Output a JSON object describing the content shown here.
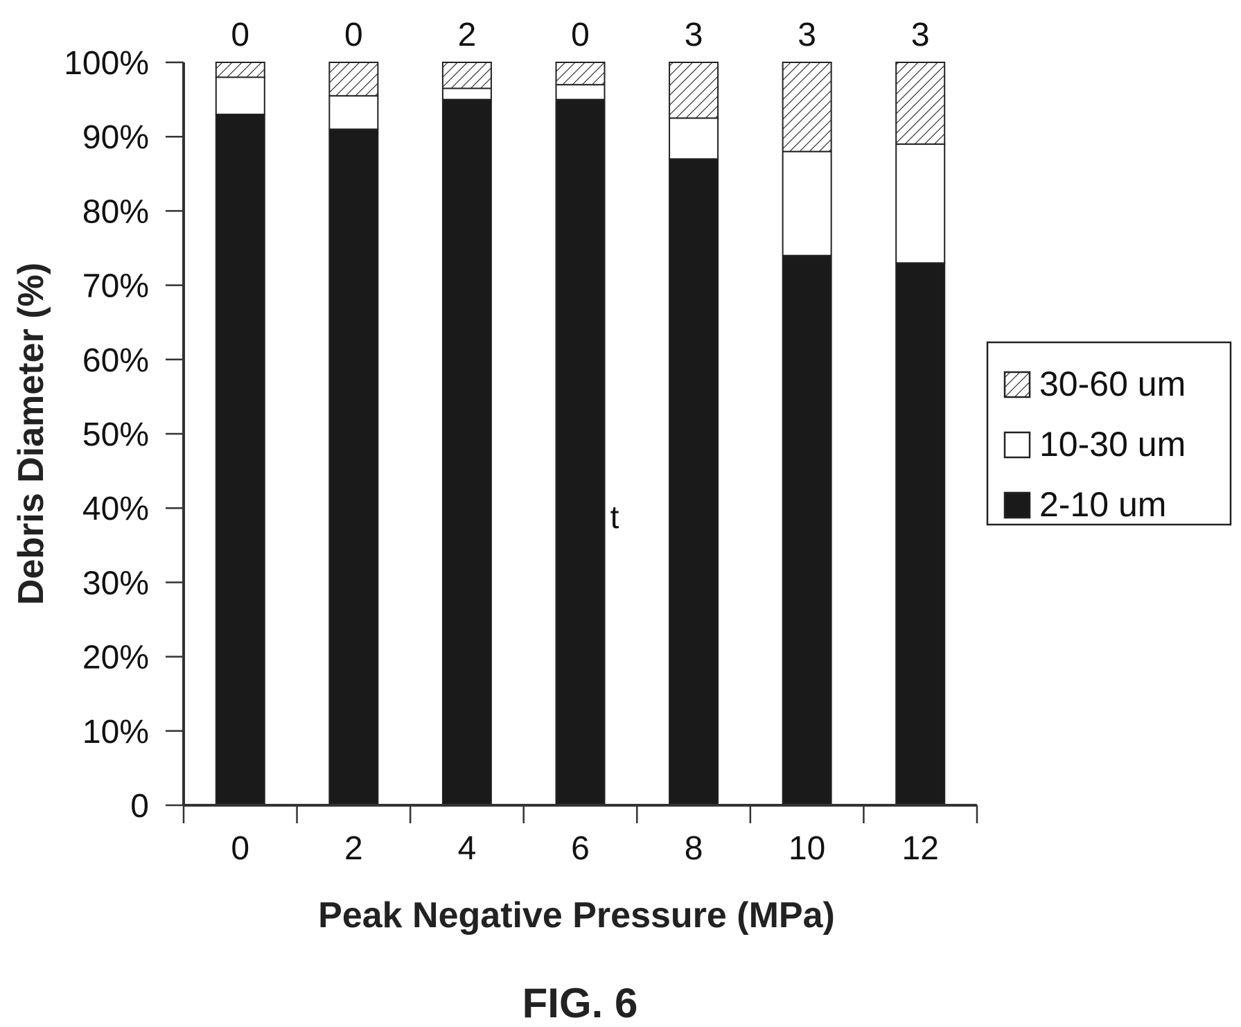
{
  "chart_data": {
    "type": "bar",
    "stacked": true,
    "categories": [
      "0",
      "2",
      "4",
      "6",
      "8",
      "10",
      "12"
    ],
    "series": [
      {
        "name": "2-10 um",
        "fill": "solid-black",
        "color": "#1a1a1a",
        "values": [
          93,
          91,
          95,
          95,
          87,
          74,
          73
        ]
      },
      {
        "name": "10-30 um",
        "fill": "white",
        "color": "#ffffff",
        "values": [
          5,
          4.5,
          1.5,
          2,
          5.5,
          14,
          16
        ]
      },
      {
        "name": "30-60 um",
        "fill": "hatched",
        "color": "#ffffff",
        "values": [
          2,
          4.5,
          3.5,
          3,
          7.5,
          12,
          11
        ]
      }
    ],
    "counts_above_bars": [
      "0",
      "0",
      "2",
      "0",
      "3",
      "3",
      "3"
    ],
    "xlabel": "Peak Negative Pressure (MPa)",
    "ylabel": "Debris Diameter (%)",
    "ylim": [
      0,
      100
    ],
    "y_tick_labels": [
      "0",
      "10%",
      "20%",
      "30%",
      "40%",
      "50%",
      "60%",
      "70%",
      "80%",
      "90%",
      "100%"
    ],
    "grid": false,
    "legend_position": "right",
    "caption": "FIG. 6",
    "stray_mark": "t"
  }
}
